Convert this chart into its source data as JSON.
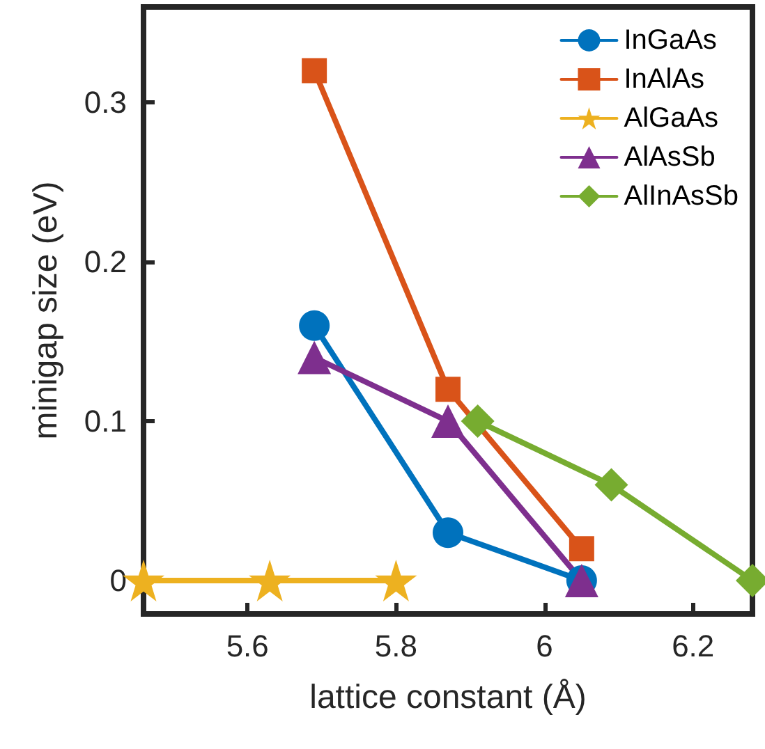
{
  "chart_data": {
    "type": "line",
    "xlabel": "lattice constant (Å)",
    "ylabel": "minigap size (eV)",
    "xlim": [
      5.46,
      6.28
    ],
    "xticks": [
      5.6,
      5.8,
      6,
      6.2
    ],
    "ylim": [
      -0.021,
      0.36
    ],
    "yticks": [
      0,
      0.1,
      0.2,
      0.3
    ],
    "grid": false,
    "legend": "top right",
    "line_style": "solid",
    "series": [
      {
        "name": "InGaAs",
        "color": "#0072bd",
        "marker": "circle",
        "x": [
          5.69,
          5.87,
          6.05
        ],
        "values": [
          0.16,
          0.03,
          0
        ]
      },
      {
        "name": "InAlAs",
        "color": "#d95319",
        "marker": "square",
        "x": [
          5.69,
          5.87,
          6.05
        ],
        "values": [
          0.32,
          0.12,
          0.02
        ]
      },
      {
        "name": "AlGaAs",
        "color": "#edb120",
        "marker": "star",
        "x": [
          5.46,
          5.63,
          5.8
        ],
        "values": [
          0,
          0,
          0
        ]
      },
      {
        "name": "AlAsSb",
        "color": "#7e2f8e",
        "marker": "triangle",
        "x": [
          5.69,
          5.87,
          6.05
        ],
        "values": [
          0.14,
          0.1,
          0
        ]
      },
      {
        "name": "AlInAsSb",
        "color": "#77ac30",
        "marker": "diamond",
        "x": [
          5.91,
          6.09,
          6.28
        ],
        "values": [
          0.1,
          0.06,
          0
        ]
      }
    ]
  }
}
